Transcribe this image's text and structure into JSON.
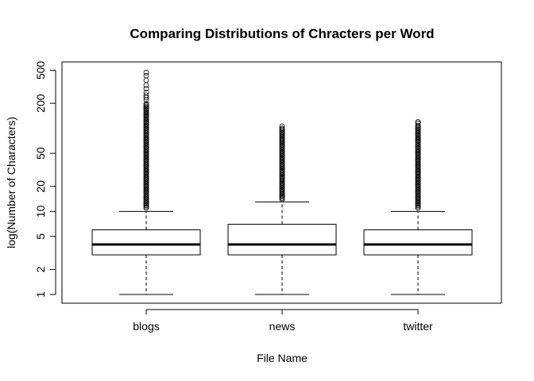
{
  "chart_data": {
    "type": "boxplot",
    "title": "Comparing Distributions of Chracters per Word",
    "xlabel": "File Name",
    "ylabel": "log(Number of Characters)",
    "y_scale": "log",
    "ylim": [
      0.8,
      620
    ],
    "y_ticks": [
      1,
      2,
      5,
      10,
      20,
      50,
      200,
      500
    ],
    "categories": [
      "blogs",
      "news",
      "twitter"
    ],
    "series": [
      {
        "name": "blogs",
        "min": 1,
        "q1": 3,
        "median": 4,
        "q3": 6,
        "max": 10,
        "outliers_range": [
          11,
          200
        ],
        "extreme_outliers": [
          220,
          235,
          250,
          270,
          300,
          330,
          380,
          430,
          470
        ]
      },
      {
        "name": "news",
        "min": 1,
        "q1": 3,
        "median": 4,
        "q3": 7,
        "max": 13,
        "outliers_range": [
          14,
          98
        ],
        "extreme_outliers": [
          100,
          106
        ]
      },
      {
        "name": "twitter",
        "min": 1,
        "q1": 3,
        "median": 4,
        "q3": 6,
        "max": 10,
        "outliers_range": [
          11,
          110
        ],
        "extreme_outliers": [
          115,
          120
        ]
      }
    ]
  }
}
